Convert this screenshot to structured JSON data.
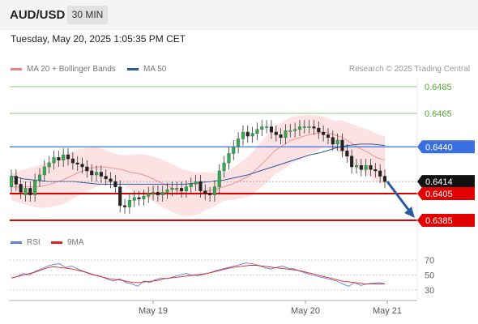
{
  "header": {
    "symbol": "AUD/USD",
    "timeframe": "30 MIN"
  },
  "timestamp": "Tuesday, May 20, 2025 1:05:35 PM CET",
  "legend": {
    "ma20": {
      "label": "MA 20 + Bollinger Bands",
      "color": "#f08080"
    },
    "ma50": {
      "label": "MA 50",
      "color": "#2c5aa0"
    }
  },
  "credit": "Research © 2025 Trading Central",
  "rsi_legend": {
    "rsi": {
      "label": "RSI",
      "color": "#5b7fd4"
    },
    "ma9": {
      "label": "9MA",
      "color": "#e02020"
    }
  },
  "chart_data": {
    "type": "candlestick",
    "price_axis": {
      "range": [
        0.6371,
        0.6495
      ]
    },
    "levels": [
      {
        "value": 0.6485,
        "label": "0.6485",
        "color": "#8fcc7a",
        "kind": "target"
      },
      {
        "value": 0.6465,
        "label": "0.6465",
        "color": "#8fcc7a",
        "kind": "target"
      },
      {
        "value": 0.644,
        "label": "0.6440",
        "color": "#3a6fe0",
        "kind": "pivot"
      },
      {
        "value": 0.6414,
        "label": "0.6414",
        "color": "#111111",
        "kind": "last"
      },
      {
        "value": 0.6405,
        "label": "0.6405",
        "color": "#e00000",
        "kind": "support"
      },
      {
        "value": 0.6385,
        "label": "0.6385",
        "color": "#e00000",
        "kind": "support"
      }
    ],
    "x_ticks": [
      "May 19",
      "May 20",
      "May 21"
    ],
    "rsi": {
      "range": [
        20,
        80
      ],
      "ticks": [
        70,
        50,
        30
      ]
    },
    "forecast": {
      "direction": "down",
      "from": 0.6414,
      "to": 0.6385
    },
    "candles_close": [
      0.6418,
      0.6412,
      0.6406,
      0.6409,
      0.6404,
      0.6415,
      0.6419,
      0.6425,
      0.6428,
      0.6432,
      0.643,
      0.6434,
      0.6431,
      0.6428,
      0.6427,
      0.6425,
      0.6422,
      0.6419,
      0.6421,
      0.6418,
      0.6416,
      0.6414,
      0.641,
      0.6396,
      0.6395,
      0.64,
      0.6402,
      0.6401,
      0.6403,
      0.6405,
      0.6406,
      0.6404,
      0.6406,
      0.6408,
      0.6409,
      0.6409,
      0.6407,
      0.641,
      0.6412,
      0.6414,
      0.6407,
      0.6405,
      0.6404,
      0.641,
      0.6422,
      0.6428,
      0.6435,
      0.644,
      0.6446,
      0.6451,
      0.6448,
      0.645,
      0.6453,
      0.6455,
      0.6455,
      0.6451,
      0.6449,
      0.6447,
      0.6452,
      0.6452,
      0.6453,
      0.6455,
      0.6455,
      0.6455,
      0.6454,
      0.6451,
      0.6449,
      0.6447,
      0.6442,
      0.6445,
      0.6437,
      0.6433,
      0.6425,
      0.6426,
      0.6423,
      0.6426,
      0.6423,
      0.6422,
      0.6418,
      0.6414
    ],
    "candles_open": [
      0.641,
      0.6418,
      0.6412,
      0.6404,
      0.6409,
      0.6404,
      0.6415,
      0.6419,
      0.6425,
      0.6428,
      0.6432,
      0.643,
      0.6434,
      0.6431,
      0.6428,
      0.6427,
      0.6425,
      0.6422,
      0.6419,
      0.6421,
      0.6418,
      0.6416,
      0.6414,
      0.641,
      0.6396,
      0.6395,
      0.64,
      0.6402,
      0.6401,
      0.6403,
      0.6405,
      0.6406,
      0.6404,
      0.6406,
      0.6408,
      0.6409,
      0.6409,
      0.6407,
      0.641,
      0.6412,
      0.6414,
      0.6407,
      0.6405,
      0.6404,
      0.641,
      0.6422,
      0.6428,
      0.6435,
      0.644,
      0.6446,
      0.6451,
      0.6448,
      0.645,
      0.6453,
      0.6455,
      0.6455,
      0.6451,
      0.6449,
      0.6447,
      0.6452,
      0.6452,
      0.6453,
      0.6455,
      0.6455,
      0.6455,
      0.6454,
      0.6451,
      0.6449,
      0.6447,
      0.6442,
      0.6445,
      0.6437,
      0.6433,
      0.6425,
      0.6426,
      0.6423,
      0.6426,
      0.6423,
      0.6422,
      0.6418
    ],
    "ma20": [
      0.641,
      0.641,
      0.641,
      0.641,
      0.6411,
      0.6413,
      0.6415,
      0.6418,
      0.6421,
      0.6423,
      0.6425,
      0.6425,
      0.6424,
      0.6423,
      0.6421,
      0.642,
      0.6418,
      0.6415,
      0.6412,
      0.6409,
      0.6406,
      0.6405,
      0.6405,
      0.6407,
      0.6408,
      0.641,
      0.6412,
      0.6415,
      0.6418,
      0.6424,
      0.643,
      0.6437,
      0.6441,
      0.6445,
      0.6447,
      0.6449,
      0.645,
      0.6451,
      0.6449,
      0.6447,
      0.6443,
      0.6439,
      0.6436,
      0.6432,
      0.643
    ],
    "ma50": [
      0.6418,
      0.6416,
      0.6415,
      0.6414,
      0.6414,
      0.6414,
      0.6413,
      0.6412,
      0.6412,
      0.6412,
      0.6412,
      0.6412,
      0.6412,
      0.6412,
      0.6412,
      0.6413,
      0.6414,
      0.6415,
      0.6417,
      0.6419,
      0.6422,
      0.6425,
      0.6428,
      0.6431,
      0.6434,
      0.6436,
      0.6439,
      0.6441,
      0.6442,
      0.6442,
      0.6441
    ],
    "rsi_values": [
      46,
      48,
      52,
      50,
      55,
      58,
      62,
      64,
      65,
      60,
      62,
      58,
      55,
      52,
      50,
      48,
      44,
      42,
      45,
      40,
      38,
      35,
      42,
      40,
      44,
      46,
      45,
      48,
      50,
      52,
      50,
      49,
      51,
      53,
      56,
      58,
      60,
      62,
      64,
      66,
      65,
      63,
      60,
      58,
      60,
      62,
      59,
      58,
      55,
      52,
      50,
      48,
      46,
      44,
      42,
      38,
      35,
      40,
      36,
      38,
      39,
      40,
      38
    ],
    "ma9_values": [
      46,
      48,
      50,
      52,
      54,
      57,
      60,
      61,
      60,
      59,
      58,
      56,
      54,
      51,
      49,
      47,
      45,
      44,
      43,
      41,
      40,
      40,
      41,
      42,
      43,
      45,
      46,
      47,
      48,
      49,
      50,
      51,
      52,
      54,
      56,
      58,
      60,
      61,
      62,
      63,
      63,
      62,
      61,
      60,
      59,
      58,
      57,
      56,
      54,
      52,
      50,
      48,
      46,
      44,
      42,
      41,
      40,
      39,
      38,
      38,
      38,
      38
    ]
  }
}
